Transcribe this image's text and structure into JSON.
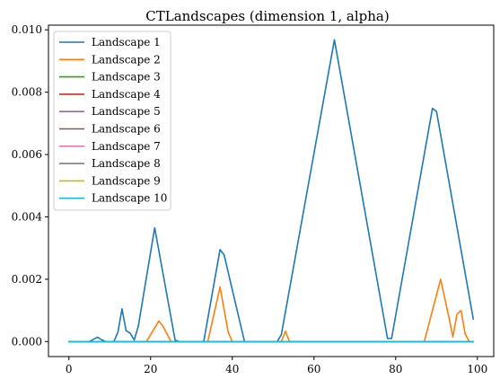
{
  "chart_data": {
    "type": "line",
    "title": "CTLandscapes (dimension 1, alpha)",
    "xlabel": "",
    "ylabel": "",
    "xlim": [
      -5,
      104
    ],
    "ylim": [
      -0.00048,
      0.01015
    ],
    "x_ticks": [
      0,
      20,
      40,
      60,
      80,
      100
    ],
    "x_tick_labels": [
      "0",
      "20",
      "40",
      "60",
      "80",
      "100"
    ],
    "y_ticks": [
      0,
      0.002,
      0.004,
      0.006,
      0.008,
      0.01
    ],
    "y_tick_labels": [
      "0.000",
      "0.002",
      "0.004",
      "0.006",
      "0.008",
      "0.010"
    ],
    "grid": false,
    "legend_position": "top-left",
    "series": [
      {
        "name": "Landscape 1",
        "color": "#1f77b4",
        "points": [
          [
            0,
            0
          ],
          [
            5,
            0
          ],
          [
            7,
            0.00014
          ],
          [
            8,
            6e-05
          ],
          [
            9,
            0
          ],
          [
            11,
            0
          ],
          [
            12,
            0.0003
          ],
          [
            13,
            0.00105
          ],
          [
            14,
            0.00035
          ],
          [
            15,
            0.00027
          ],
          [
            16,
            5e-05
          ],
          [
            17,
            0.0005
          ],
          [
            21,
            0.00365
          ],
          [
            26,
            5e-05
          ],
          [
            27,
            0
          ],
          [
            33,
            0
          ],
          [
            37,
            0.00295
          ],
          [
            38,
            0.00278
          ],
          [
            42,
            0.00055
          ],
          [
            43,
            0
          ],
          [
            51,
            0
          ],
          [
            52,
            0.00022
          ],
          [
            65,
            0.00968
          ],
          [
            78,
            0.0001
          ],
          [
            79,
            0.0001
          ],
          [
            89,
            0.00748
          ],
          [
            90,
            0.00738
          ],
          [
            99,
            0.00072
          ]
        ]
      },
      {
        "name": "Landscape 2",
        "color": "#ff7f0e",
        "points": [
          [
            0,
            0
          ],
          [
            19,
            0
          ],
          [
            22,
            0.00066
          ],
          [
            23,
            0.0005
          ],
          [
            25,
            0
          ],
          [
            34,
            0
          ],
          [
            37,
            0.00175
          ],
          [
            39,
            0.0003
          ],
          [
            40,
            0
          ],
          [
            52,
            0
          ],
          [
            53,
            0.00033
          ],
          [
            54,
            0
          ],
          [
            87,
            0
          ],
          [
            91,
            0.002
          ],
          [
            93,
            0.0008
          ],
          [
            94,
            0.00015
          ],
          [
            95,
            0.00088
          ],
          [
            96,
            0.001
          ],
          [
            97,
            0.00025
          ],
          [
            98,
            0
          ],
          [
            99,
            0
          ]
        ]
      },
      {
        "name": "Landscape 3",
        "color": "#2ca02c",
        "points": [
          [
            0,
            0
          ],
          [
            99,
            0
          ]
        ]
      },
      {
        "name": "Landscape 4",
        "color": "#d62728",
        "points": [
          [
            0,
            0
          ],
          [
            99,
            0
          ]
        ]
      },
      {
        "name": "Landscape 5",
        "color": "#9467bd",
        "points": [
          [
            0,
            0
          ],
          [
            99,
            0
          ]
        ]
      },
      {
        "name": "Landscape 6",
        "color": "#8c564b",
        "points": [
          [
            0,
            0
          ],
          [
            99,
            0
          ]
        ]
      },
      {
        "name": "Landscape 7",
        "color": "#e377c2",
        "points": [
          [
            0,
            0
          ],
          [
            99,
            0
          ]
        ]
      },
      {
        "name": "Landscape 8",
        "color": "#7f7f7f",
        "points": [
          [
            0,
            0
          ],
          [
            99,
            0
          ]
        ]
      },
      {
        "name": "Landscape 9",
        "color": "#bcbd22",
        "points": [
          [
            0,
            0
          ],
          [
            99,
            0
          ]
        ]
      },
      {
        "name": "Landscape 10",
        "color": "#17becf",
        "points": [
          [
            0,
            0
          ],
          [
            99,
            0
          ]
        ]
      }
    ]
  }
}
